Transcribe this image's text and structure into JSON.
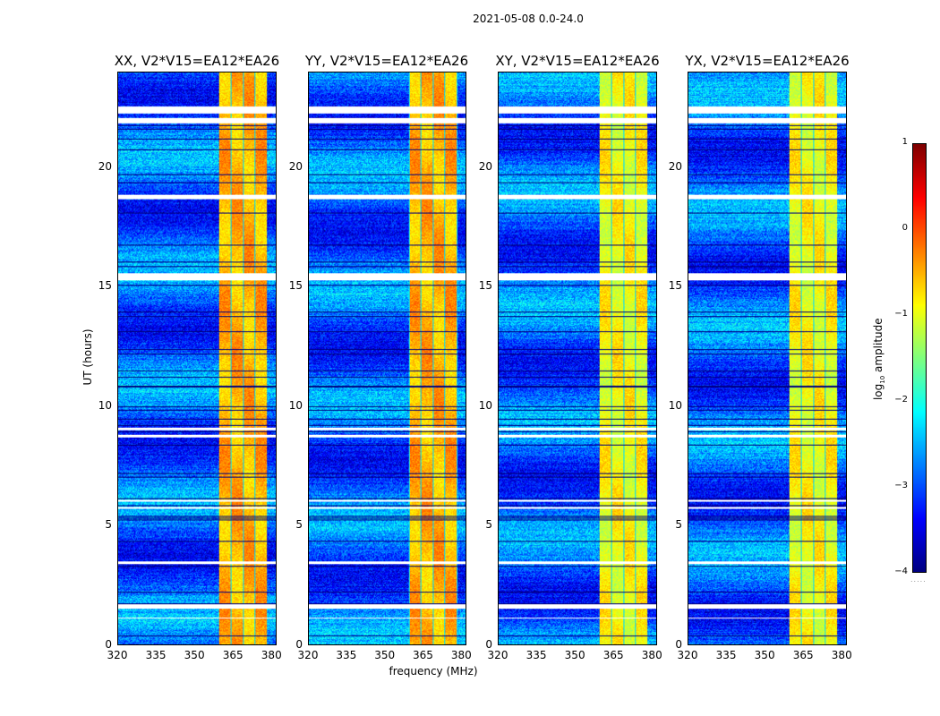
{
  "chart_data": {
    "type": "heatmap",
    "suptitle": "2021-05-08 0.0-24.0",
    "panels": [
      {
        "title": "XX, V2*V15=EA12*EA26",
        "pol": "XX"
      },
      {
        "title": "YY, V2*V15=EA12*EA26",
        "pol": "YY"
      },
      {
        "title": "XY, V2*V15=EA12*EA26",
        "pol": "XY"
      },
      {
        "title": "YX, V2*V15=EA12*EA26",
        "pol": "YX"
      }
    ],
    "xlabel": "frequency (MHz)",
    "ylabel": "UT (hours)",
    "xlim": [
      320,
      382
    ],
    "ylim": [
      0,
      24
    ],
    "xticks": [
      "320",
      "335",
      "350",
      "365",
      "380"
    ],
    "xtick_values": [
      320,
      335,
      350,
      365,
      380
    ],
    "yticks": [
      "0",
      "5",
      "10",
      "15",
      "20"
    ],
    "ytick_values": [
      0,
      5,
      10,
      15,
      20
    ],
    "colorbar": {
      "label": "log10 amplitude",
      "label_main": "log",
      "label_sub": "10",
      "label_rest": " amplitude",
      "range": [
        -4,
        1
      ],
      "ticks": [
        "1",
        "0",
        "−1",
        "−2",
        "−3",
        "−4"
      ],
      "tick_values": [
        1,
        0,
        -1,
        -2,
        -3,
        -4
      ],
      "colormap": "jet"
    },
    "bright_band_mhz": [
      359.5,
      378.5
    ],
    "flagged_ut_hours": [
      [
        22.3,
        22.6
      ],
      [
        21.9,
        22.1
      ],
      [
        18.7,
        18.9
      ],
      [
        15.3,
        15.6
      ],
      [
        9.0,
        9.1
      ],
      [
        8.7,
        8.8
      ],
      [
        6.0,
        6.1
      ],
      [
        5.7,
        5.8
      ],
      [
        3.4,
        3.5
      ],
      [
        1.5,
        1.7
      ],
      [
        1.1,
        1.15
      ]
    ]
  }
}
